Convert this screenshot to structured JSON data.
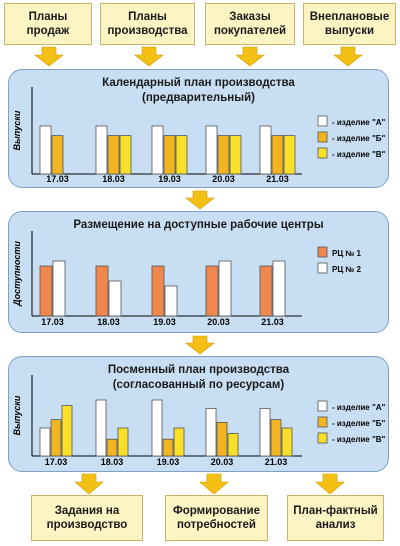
{
  "inputs": [
    "Планы\nпродаж",
    "Планы\nпроизводства",
    "Заказы\nпокупателей",
    "Внеплановые\nвыпуски"
  ],
  "outputs": [
    "Задания на\nпроизводство",
    "Формирование\nпотребностей",
    "План-фактный\nанализ"
  ],
  "colors": {
    "orange": "#f0874f",
    "white": "#ffffff",
    "yellow": "#f7df2a",
    "gold": "#f2b422",
    "panel": "#c8dff3",
    "input_box": "#fdf4c4",
    "arrow": "#f5c014"
  },
  "panels": [
    {
      "title": "Календарный план производства\n(предварительный)",
      "chart_data": {
        "type": "bar",
        "ylabel": "Выпуски",
        "categories": [
          "17.03",
          "18.03",
          "19.03",
          "20.03",
          "21.03"
        ],
        "series": [
          {
            "name": "- изделие \"А\"",
            "color": "#ffffff",
            "values": [
              1.0,
              1.0,
              1.0,
              1.0,
              1.0
            ]
          },
          {
            "name": "- изделие \"Б\"",
            "color": "#f2b422",
            "values": [
              0.8,
              0.8,
              0.8,
              0.8,
              0.8
            ]
          },
          {
            "name": "- изделие \"В\"",
            "color": "#f7df2a",
            "values": [
              null,
              0.8,
              0.8,
              0.8,
              0.8
            ]
          }
        ]
      }
    },
    {
      "title": "Размещение на доступные рабочие центры",
      "chart_data": {
        "type": "bar",
        "ylabel": "Доступности",
        "categories": [
          "17.03",
          "18.03",
          "19.03",
          "20.03",
          "21.03"
        ],
        "series": [
          {
            "name": "РЦ № 1",
            "color": "#f0874f",
            "values": [
              1.0,
              1.0,
              1.0,
              1.0,
              1.0
            ]
          },
          {
            "name": "РЦ № 2",
            "color": "#ffffff",
            "values": [
              1.1,
              0.7,
              0.6,
              1.1,
              1.1
            ]
          }
        ]
      }
    },
    {
      "title": "Посменный план производства\n(согласованный по ресурсам)",
      "chart_data": {
        "type": "bar",
        "ylabel": "Выпуски",
        "categories": [
          "17.03",
          "18.03",
          "19.03",
          "20.03",
          "21.03"
        ],
        "series": [
          {
            "name": "- изделие \"А\"",
            "color": "#ffffff",
            "values": [
              0.5,
              1.0,
              1.0,
              0.85,
              0.85
            ]
          },
          {
            "name": "- изделие \"Б\"",
            "color": "#f2b422",
            "values": [
              0.65,
              0.3,
              0.3,
              0.6,
              0.65
            ]
          },
          {
            "name": "- изделие \"В\"",
            "color": "#f7df2a",
            "values": [
              0.9,
              0.5,
              0.5,
              0.4,
              0.5
            ]
          }
        ]
      }
    }
  ]
}
